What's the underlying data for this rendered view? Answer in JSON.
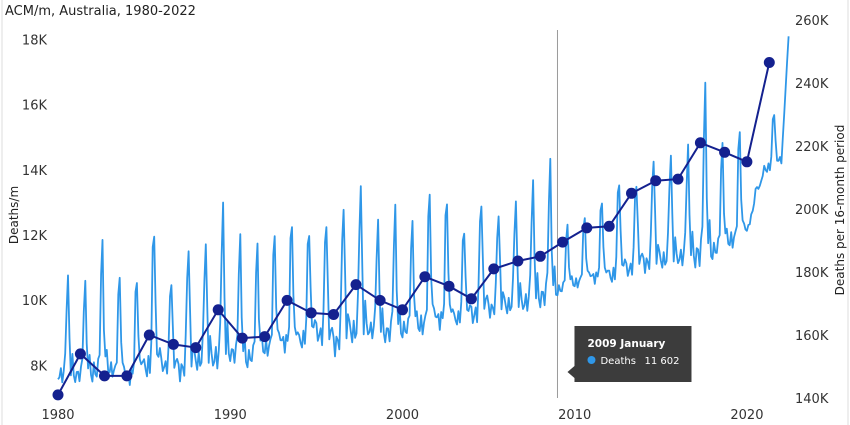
{
  "chart_data": {
    "type": "line",
    "title": "ACM/m, Australia, 1980-2022",
    "ylabel_left": "Deaths/m",
    "ylabel_right": "Deaths per 16-month period",
    "x_range": [
      1980,
      2022.5
    ],
    "y_left_range": [
      7000,
      18600
    ],
    "y_right_range": [
      140000,
      260000
    ],
    "x_ticks": [
      "1980",
      "1990",
      "2000",
      "2010",
      "2020"
    ],
    "y_left_ticks": [
      "8K",
      "10K",
      "12K",
      "14K",
      "16K",
      "18K"
    ],
    "y_right_ticks": [
      "140K",
      "160K",
      "180K",
      "200K",
      "220K",
      "240K",
      "260K"
    ],
    "colors": {
      "monthly": "#2f97e8",
      "period": "#14218f",
      "crosshair": "#9a9a9a"
    },
    "series": [
      {
        "name": "Deaths",
        "axis": "left",
        "frequency": "monthly",
        "start": "1980-01",
        "annual_peak": [
          [
            1980,
            10700
          ],
          [
            1981,
            10500
          ],
          [
            1982,
            11800
          ],
          [
            1983,
            10800
          ],
          [
            1984,
            10800
          ],
          [
            1985,
            12500
          ],
          [
            1986,
            10800
          ],
          [
            1987,
            11800
          ],
          [
            1988,
            11800
          ],
          [
            1989,
            12900
          ],
          [
            1990,
            11900
          ],
          [
            1991,
            11700
          ],
          [
            1992,
            12100
          ],
          [
            1993,
            12600
          ],
          [
            1994,
            12400
          ],
          [
            1995,
            12700
          ],
          [
            1996,
            13100
          ],
          [
            1997,
            13600
          ],
          [
            1998,
            12400
          ],
          [
            1999,
            12800
          ],
          [
            2000,
            12400
          ],
          [
            2001,
            13400
          ],
          [
            2002,
            13300
          ],
          [
            2003,
            12400
          ],
          [
            2004,
            13300
          ],
          [
            2005,
            12800
          ],
          [
            2006,
            13100
          ],
          [
            2007,
            13600
          ],
          [
            2008,
            14200
          ],
          [
            2009,
            12300
          ],
          [
            2010,
            12600
          ],
          [
            2011,
            13200
          ],
          [
            2012,
            13900
          ],
          [
            2013,
            13800
          ],
          [
            2014,
            14500
          ],
          [
            2015,
            14500
          ],
          [
            2016,
            14700
          ],
          [
            2017,
            16500
          ],
          [
            2018,
            14800
          ],
          [
            2019,
            15300
          ],
          [
            2020,
            13500
          ],
          [
            2021,
            15900
          ],
          [
            2022,
            18100
          ]
        ],
        "annual_trough": [
          [
            1980,
            7700
          ],
          [
            1981,
            7700
          ],
          [
            1982,
            7800
          ],
          [
            1983,
            7900
          ],
          [
            1984,
            7600
          ],
          [
            1985,
            7900
          ],
          [
            1986,
            8000
          ],
          [
            1987,
            7800
          ],
          [
            1988,
            8100
          ],
          [
            1989,
            8200
          ],
          [
            1990,
            8400
          ],
          [
            1991,
            8200
          ],
          [
            1992,
            8500
          ],
          [
            1993,
            8700
          ],
          [
            1994,
            8700
          ],
          [
            1995,
            9000
          ],
          [
            1996,
            8600
          ],
          [
            1997,
            9000
          ],
          [
            1998,
            9100
          ],
          [
            1999,
            9000
          ],
          [
            2000,
            9100
          ],
          [
            2001,
            9200
          ],
          [
            2002,
            9400
          ],
          [
            2003,
            9400
          ],
          [
            2004,
            9500
          ],
          [
            2005,
            9700
          ],
          [
            2006,
            9800
          ],
          [
            2007,
            9900
          ],
          [
            2008,
            10100
          ],
          [
            2009,
            10300
          ],
          [
            2010,
            10500
          ],
          [
            2011,
            10700
          ],
          [
            2012,
            10700
          ],
          [
            2013,
            10900
          ],
          [
            2014,
            11100
          ],
          [
            2015,
            11200
          ],
          [
            2016,
            11300
          ],
          [
            2017,
            11400
          ],
          [
            2018,
            11500
          ],
          [
            2019,
            11800
          ],
          [
            2020,
            12100
          ],
          [
            2021,
            14000
          ],
          [
            2022,
            14200
          ]
        ]
      },
      {
        "name": "Deaths per 16-month period",
        "axis": "right",
        "x": [
          1980.0,
          1981.3,
          1982.7,
          1984.0,
          1985.3,
          1986.7,
          1988.0,
          1989.3,
          1990.7,
          1992.0,
          1993.3,
          1994.7,
          1996.0,
          1997.3,
          1998.7,
          2000.0,
          2001.3,
          2002.7,
          2004.0,
          2005.3,
          2006.7,
          2008.0,
          2009.3,
          2010.7,
          2012.0,
          2013.3,
          2014.7,
          2016.0,
          2017.3,
          2018.7,
          2020.0,
          2021.3
        ],
        "y": [
          141000,
          154000,
          147000,
          147000,
          160000,
          157000,
          156000,
          168000,
          159000,
          159500,
          171000,
          167000,
          166500,
          176000,
          171000,
          168000,
          178500,
          175500,
          171500,
          181000,
          183500,
          185000,
          189500,
          194000,
          194500,
          205000,
          209000,
          209500,
          221000,
          218000,
          215000,
          246500
        ]
      }
    ],
    "tooltip": {
      "title": "2009 January",
      "series_name": "Deaths",
      "value": "11 602",
      "x": 2009.0
    }
  }
}
